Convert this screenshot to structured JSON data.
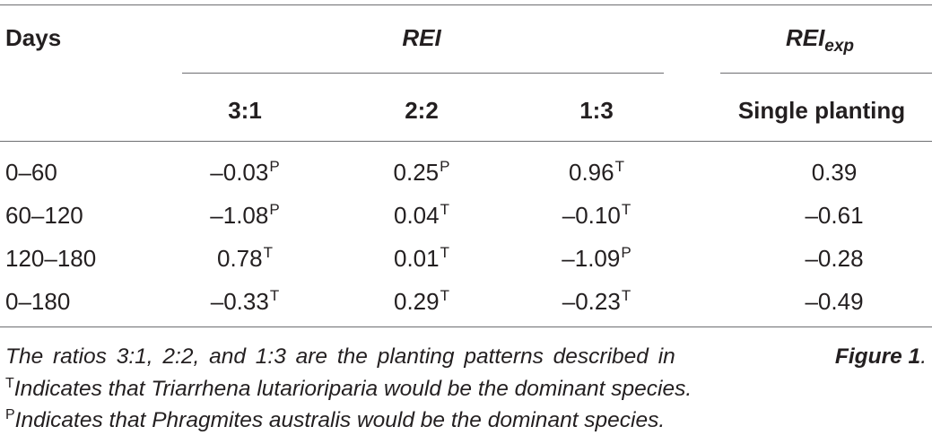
{
  "table": {
    "header": {
      "days_label": "Days",
      "rei_label": "REI",
      "rei_exp_label": "REI",
      "rei_exp_subscript": "exp",
      "sub_columns": [
        "3:1",
        "2:2",
        "1:3",
        "Single planting"
      ]
    },
    "rows": [
      {
        "days": "0–60",
        "r31": "–0.03",
        "r31_sup": "P",
        "r22": "0.25",
        "r22_sup": "P",
        "r13": "0.96",
        "r13_sup": "T",
        "single": "0.39"
      },
      {
        "days": "60–120",
        "r31": "–1.08",
        "r31_sup": "P",
        "r22": "0.04",
        "r22_sup": "T",
        "r13": "–0.10",
        "r13_sup": "T",
        "single": "–0.61"
      },
      {
        "days": "120–180",
        "r31": "0.78",
        "r31_sup": "T",
        "r22": "0.01",
        "r22_sup": "T",
        "r13": "–1.09",
        "r13_sup": "P",
        "single": "–0.28"
      },
      {
        "days": "0–180",
        "r31": "–0.33",
        "r31_sup": "T",
        "r22": "0.29",
        "r22_sup": "T",
        "r13": "–0.23",
        "r13_sup": "T",
        "single": "–0.49"
      }
    ]
  },
  "notes": {
    "line1_text": "The ratios 3:1, 2:2, and 1:3 are the planting patterns described in ",
    "line1_figure": "Figure 1",
    "line1_end": ".",
    "line2_sup": "T",
    "line2_text": "Indicates that Triarrhena lutarioriparia would be the dominant species.",
    "line3_sup": "P",
    "line3_text": "Indicates that Phragmites australis would be the dominant species."
  }
}
